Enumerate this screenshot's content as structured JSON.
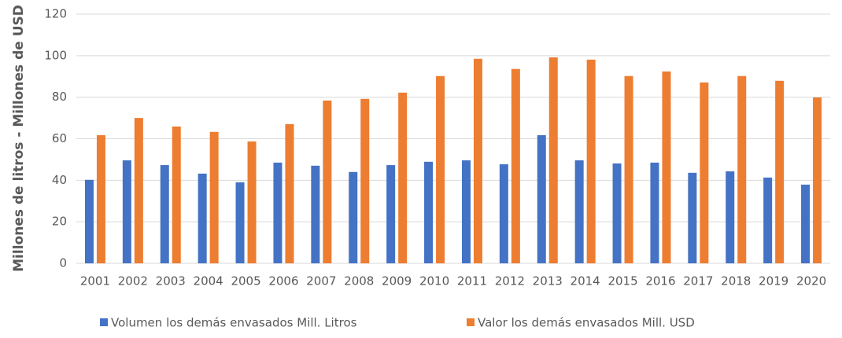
{
  "chart_data": {
    "type": "bar",
    "y_label": "Millones de litros - Millones de USD",
    "categories": [
      "2001",
      "2002",
      "2003",
      "2004",
      "2005",
      "2006",
      "2007",
      "2008",
      "2009",
      "2010",
      "2011",
      "2012",
      "2013",
      "2014",
      "2015",
      "2016",
      "2017",
      "2018",
      "2019",
      "2020"
    ],
    "series": [
      {
        "name": "Volumen los demás envasados Mill. Litros",
        "color": "#4472c4",
        "values": [
          40.2,
          49.6,
          47.3,
          43.2,
          39,
          48.5,
          47,
          44,
          47.3,
          48.9,
          49.6,
          47.7,
          61.7,
          49.6,
          48.1,
          48.5,
          43.6,
          44.3,
          41.3,
          37.9
        ]
      },
      {
        "name": "Valor los demás envasados Mill. USD",
        "color": "#ed7d31",
        "values": [
          61.7,
          70,
          65.9,
          63.3,
          58.7,
          67,
          78.4,
          79.2,
          82.2,
          90.2,
          98.5,
          93.6,
          99.2,
          98.1,
          90.2,
          92.4,
          87.1,
          90.2,
          87.9,
          79.9
        ]
      }
    ],
    "ylim": [
      0,
      120
    ],
    "yticks": [
      0,
      20,
      40,
      60,
      80,
      100,
      120
    ],
    "grid": true,
    "legend": "bottom"
  }
}
